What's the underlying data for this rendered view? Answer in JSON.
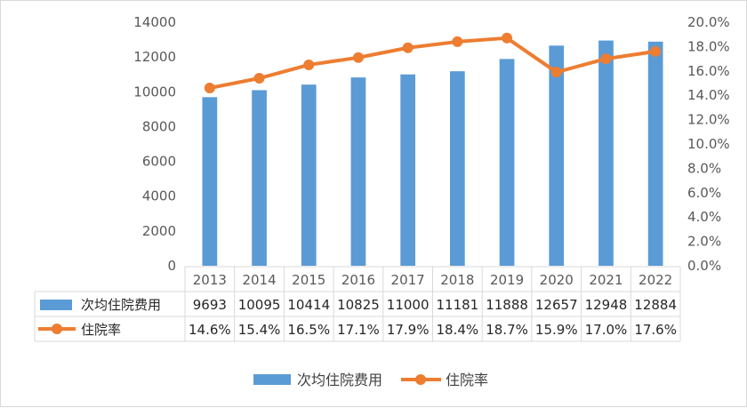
{
  "chart_data": {
    "type": "bar",
    "categories": [
      "2013",
      "2014",
      "2015",
      "2016",
      "2017",
      "2018",
      "2019",
      "2020",
      "2021",
      "2022"
    ],
    "series": [
      {
        "name": "次均住院费用",
        "type": "bar",
        "axis": "left",
        "values": [
          9693,
          10095,
          10414,
          10825,
          11000,
          11181,
          11888,
          12657,
          12948,
          12884
        ],
        "labels": [
          "9693",
          "10095",
          "10414",
          "10825",
          "11000",
          "11181",
          "11888",
          "12657",
          "12948",
          "12884"
        ],
        "color": "#5b9bd5"
      },
      {
        "name": "住院率",
        "type": "line",
        "axis": "right",
        "values": [
          14.6,
          15.4,
          16.5,
          17.1,
          17.9,
          18.4,
          18.7,
          15.9,
          17.0,
          17.6
        ],
        "labels": [
          "14.6%",
          "15.4%",
          "16.5%",
          "17.1%",
          "17.9%",
          "18.4%",
          "18.7%",
          "15.9%",
          "17.0%",
          "17.6%"
        ],
        "color": "#ed7d31"
      }
    ],
    "y_left": {
      "ylim": [
        0,
        14000
      ],
      "ticks": [
        "0",
        "2000",
        "4000",
        "6000",
        "8000",
        "10000",
        "12000",
        "14000"
      ]
    },
    "y_right": {
      "ylim": [
        0,
        20
      ],
      "ticks": [
        "0.0%",
        "2.0%",
        "4.0%",
        "6.0%",
        "8.0%",
        "10.0%",
        "12.0%",
        "14.0%",
        "16.0%",
        "18.0%",
        "20.0%"
      ]
    },
    "title": "",
    "grid": false,
    "legend": "bottom",
    "data_table": true
  }
}
